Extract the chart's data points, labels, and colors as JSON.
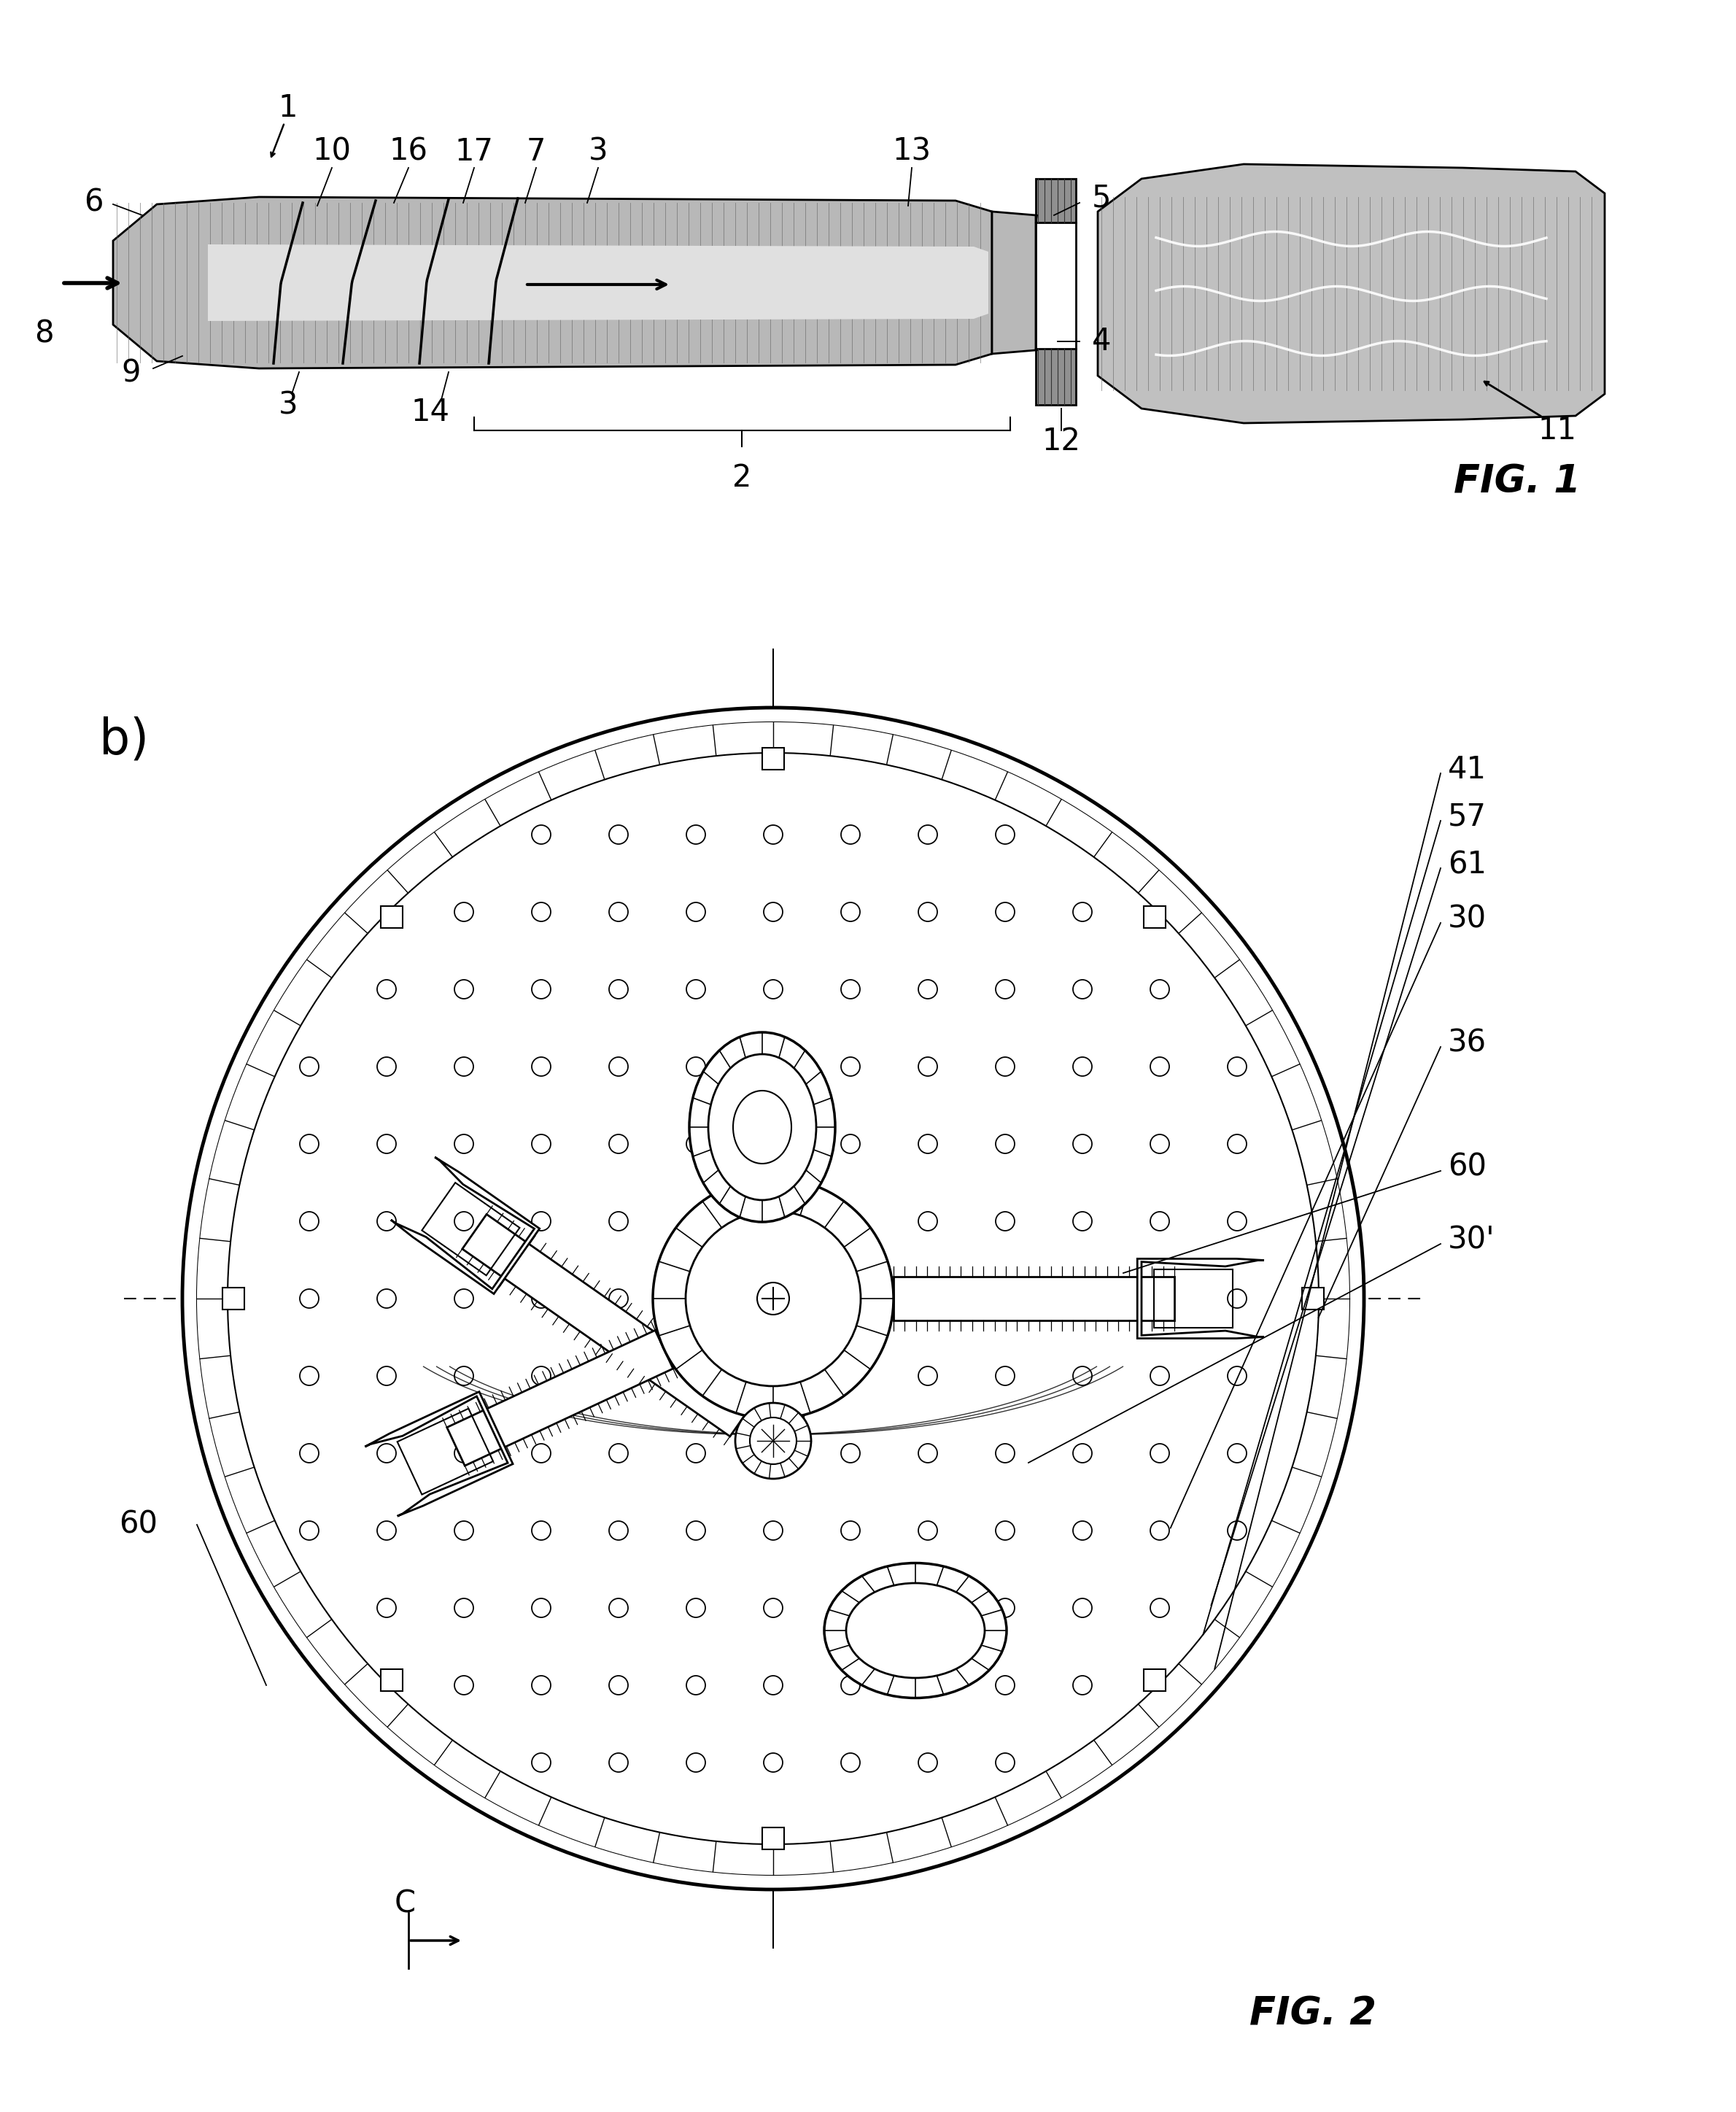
{
  "fig_width": 23.8,
  "fig_height": 28.95,
  "bg_color": "#ffffff",
  "fig1_label": "FIG. 1",
  "fig2_label": "FIG. 2",
  "label_b": "b)",
  "label_c": "C",
  "duct_gray": "#b8b8b8",
  "blade_gray": "#c0c0c0",
  "step_gray": "#909090",
  "font_label": 30,
  "font_fig": 38
}
